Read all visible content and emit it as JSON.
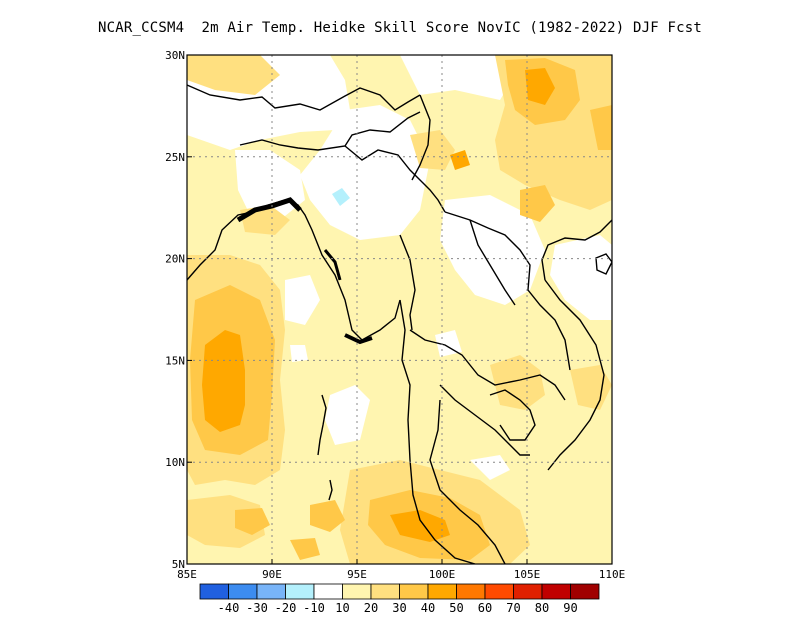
{
  "title": "NCAR_CCSM4  2m Air Temp. Heidke Skill Score NovIC (1982-2022) DJF Fcst",
  "map": {
    "lon_range": [
      85,
      110
    ],
    "lat_range": [
      5,
      30
    ],
    "x_ticks": [
      {
        "value": 85,
        "label": "85E"
      },
      {
        "value": 90,
        "label": "90E"
      },
      {
        "value": 95,
        "label": "95E"
      },
      {
        "value": 100,
        "label": "100E"
      },
      {
        "value": 105,
        "label": "105E"
      },
      {
        "value": 110,
        "label": "110E"
      }
    ],
    "y_ticks": [
      {
        "value": 5,
        "label": "5N"
      },
      {
        "value": 10,
        "label": "10N"
      },
      {
        "value": 15,
        "label": "15N"
      },
      {
        "value": 20,
        "label": "20N"
      },
      {
        "value": 25,
        "label": "25N"
      },
      {
        "value": 30,
        "label": "30N"
      }
    ],
    "gridlines": "dotted at 5 degree intervals"
  },
  "colorbar": {
    "colors": [
      "#2060e0",
      "#3c8cf0",
      "#78b4f8",
      "#b4f0fc",
      "#ffffff",
      "#fff5b0",
      "#ffe080",
      "#ffc848",
      "#ffa800",
      "#ff7800",
      "#ff4a00",
      "#e02000",
      "#c00000",
      "#a00000"
    ],
    "labels": [
      "-40",
      "-30",
      "-20",
      "-10",
      "10",
      "20",
      "30",
      "40",
      "50",
      "60",
      "70",
      "80",
      "90"
    ]
  },
  "field_samples": [
    {
      "lon": 87.5,
      "lat": 14.5,
      "value": 50,
      "note": "Bay of Bengal west"
    },
    {
      "lon": 88.5,
      "lat": 16,
      "value": 40
    },
    {
      "lon": 97,
      "lat": 6.5,
      "value": 50,
      "note": "Andaman Sea / Malay Peninsula"
    },
    {
      "lon": 106,
      "lat": 28,
      "value": 40,
      "note": "Sichuan"
    },
    {
      "lon": 100,
      "lat": 22,
      "value": 0,
      "note": "Laos/Yunnan near-zero"
    },
    {
      "lon": 94,
      "lat": 25,
      "value": 0,
      "note": "Northeast India near-zero"
    },
    {
      "lon": 94,
      "lat": 22.5,
      "value": -10,
      "note": "small blue patch"
    }
  ]
}
